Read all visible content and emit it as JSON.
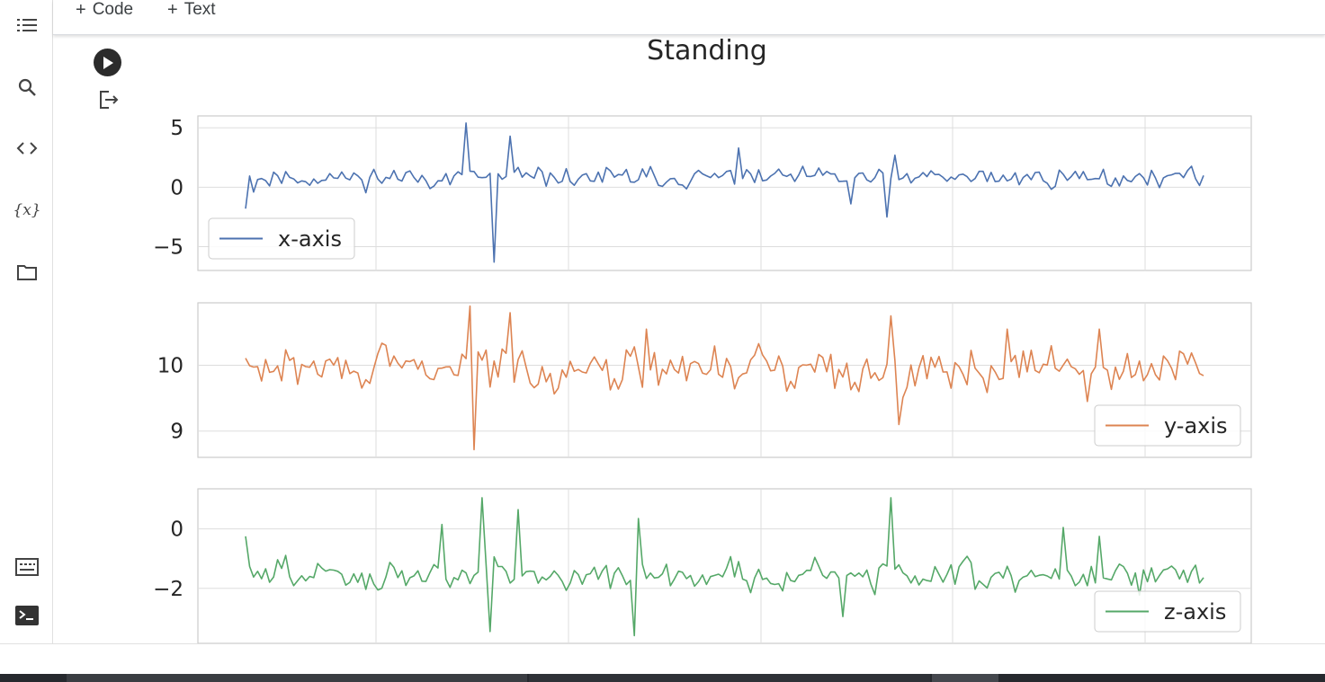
{
  "toolbar": {
    "add_code": "Code",
    "add_text": "Text"
  },
  "rail": {
    "items": [
      {
        "name": "table-of-contents-icon"
      },
      {
        "name": "search-icon"
      },
      {
        "name": "code-snippets-icon"
      },
      {
        "name": "variables-icon",
        "glyph": "{x}"
      },
      {
        "name": "folder-icon"
      },
      {
        "name": "command-palette-icon"
      },
      {
        "name": "terminal-icon"
      }
    ]
  },
  "cell": {
    "run_icon": "play-icon",
    "output_icon": "output-redirect-icon"
  },
  "colors": {
    "x": "#4c72b0",
    "y": "#dd8452",
    "z": "#55a868",
    "grid": "#dddddd"
  },
  "chart_data": [
    {
      "type": "line",
      "title": "Standing",
      "series": [
        {
          "name": "x-axis"
        }
      ],
      "yticks": [
        5,
        0,
        -5
      ],
      "ylim": [
        -7,
        6
      ],
      "grid": true,
      "legend": "lower-left",
      "n_points": 240,
      "summary": {
        "baseline": 0.8,
        "min": -6.3,
        "max": 5.6
      }
    },
    {
      "type": "line",
      "series": [
        {
          "name": "y-axis"
        }
      ],
      "yticks": [
        10,
        9
      ],
      "ylim": [
        8.6,
        10.95
      ],
      "grid": true,
      "legend": "lower-right",
      "n_points": 240,
      "summary": {
        "baseline": 9.95,
        "min": 8.7,
        "max": 10.9
      }
    },
    {
      "type": "line",
      "series": [
        {
          "name": "z-axis"
        }
      ],
      "yticks": [
        0,
        -2
      ],
      "ylim": [
        -3.85,
        1.35
      ],
      "grid": true,
      "legend": "lower-right",
      "n_points": 240,
      "summary": {
        "baseline": -1.55,
        "min": -3.6,
        "max": 1.15
      }
    }
  ]
}
